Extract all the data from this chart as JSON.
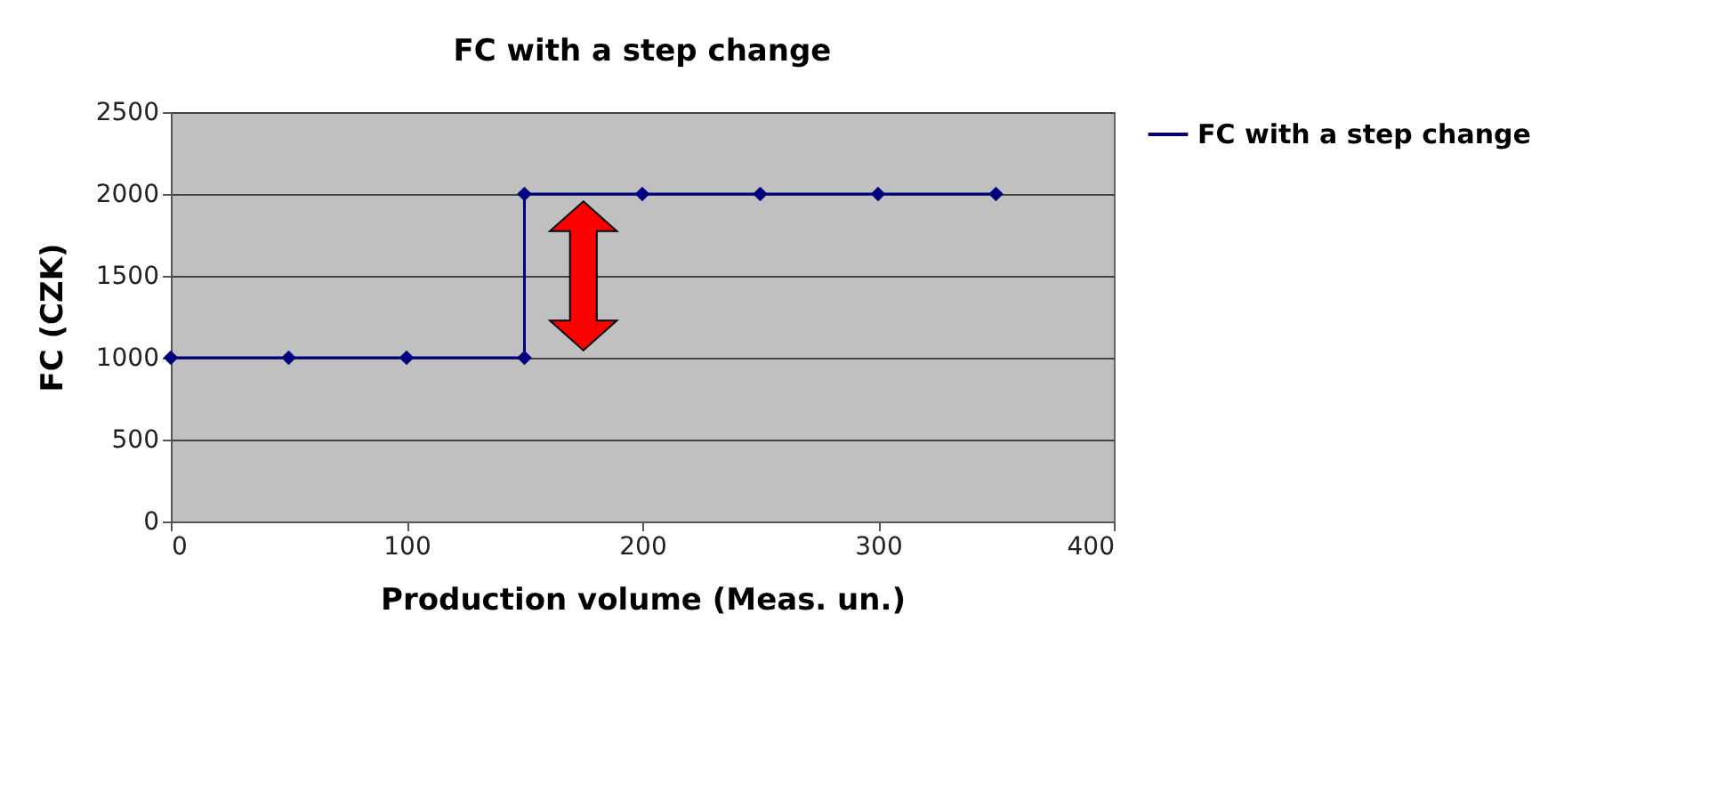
{
  "chart_data": {
    "type": "line",
    "title": "FC with a step change",
    "xlabel": "Production volume (Meas. un.)",
    "ylabel": "FC (CZK)",
    "x": [
      0,
      50,
      100,
      150,
      150,
      200,
      250,
      300,
      350
    ],
    "series": [
      {
        "name": "FC with a step change",
        "color": "#000080",
        "values": [
          1000,
          1000,
          1000,
          1000,
          2000,
          2000,
          2000,
          2000,
          2000
        ]
      }
    ],
    "xlim": [
      0,
      400
    ],
    "xticks": [
      0,
      100,
      200,
      300,
      400
    ],
    "ylim": [
      0,
      2500
    ],
    "yticks": [
      0,
      500,
      1000,
      1500,
      2000,
      2500
    ],
    "grid": "y",
    "legend": "right",
    "marker": "diamond",
    "line_style": "solid"
  }
}
